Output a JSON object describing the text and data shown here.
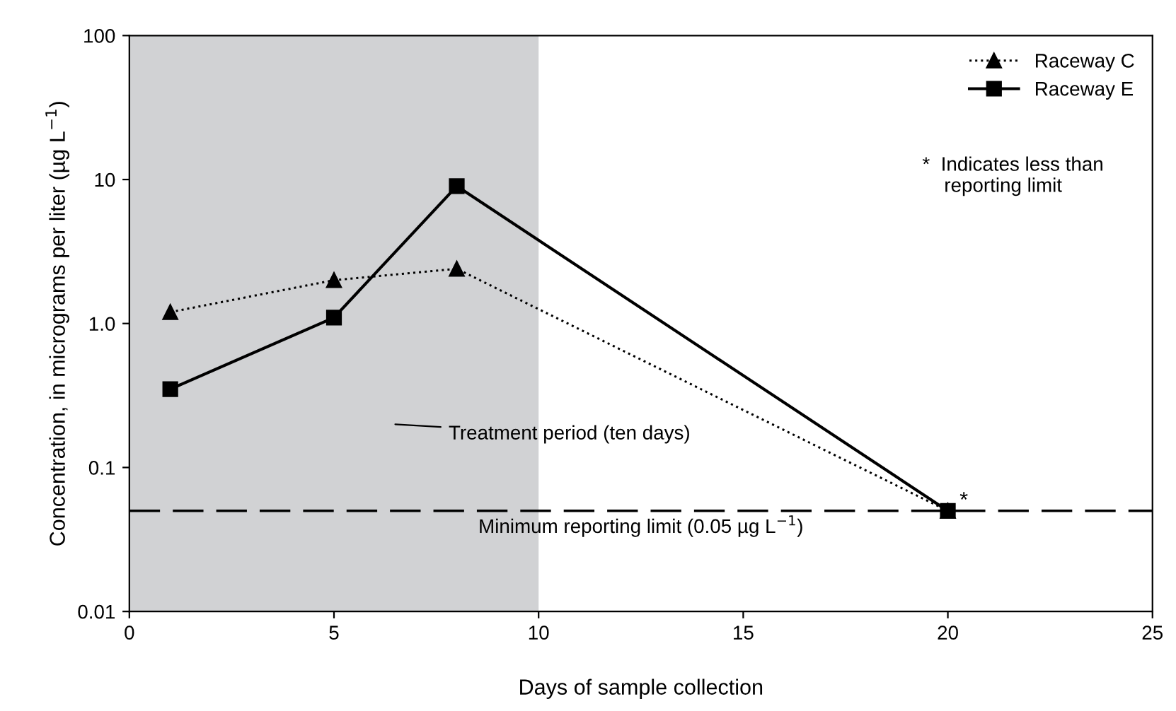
{
  "chart_data": {
    "type": "line",
    "xlabel": "Days of sample collection",
    "ylabel": "Concentration, in micrograms per liter (µg L$^{−1}$)",
    "x": [
      1,
      5,
      8,
      20
    ],
    "series": [
      {
        "name": "Raceway C",
        "color": "#000000",
        "values": [
          1.2,
          2.0,
          2.4,
          0.05
        ],
        "marker": "triangle",
        "line_style": "dotted"
      },
      {
        "name": "Raceway E",
        "color": "#000000",
        "values": [
          0.35,
          1.1,
          9,
          0.05
        ],
        "marker": "square",
        "line_style": "solid"
      }
    ],
    "log": "y",
    "xlim": [
      0,
      25
    ],
    "xticks": [
      0,
      5,
      10,
      15,
      20,
      25
    ],
    "ylim": [
      0.01,
      100
    ],
    "yticks": [
      0.01,
      0.1,
      {
        "value": 1,
        "label": "1.0"
      },
      10,
      100
    ],
    "bands": [
      {
        "axis": "x",
        "from": 0,
        "to": 10,
        "label": "Treatment period (ten days)",
        "color": "#d1d2d4"
      }
    ],
    "ref_lines": [
      {
        "axis": "y",
        "value": 0.05,
        "label": "Minimum reporting limit (0.05 µg L$^{−1}$)",
        "color": "#000000",
        "line_style": "dashed"
      }
    ],
    "annotations": [
      {
        "text": "*",
        "x": 20,
        "y": 0.05
      },
      "*  Indicates less than\n    reporting limit"
    ],
    "grid": false,
    "legend": "top right"
  }
}
